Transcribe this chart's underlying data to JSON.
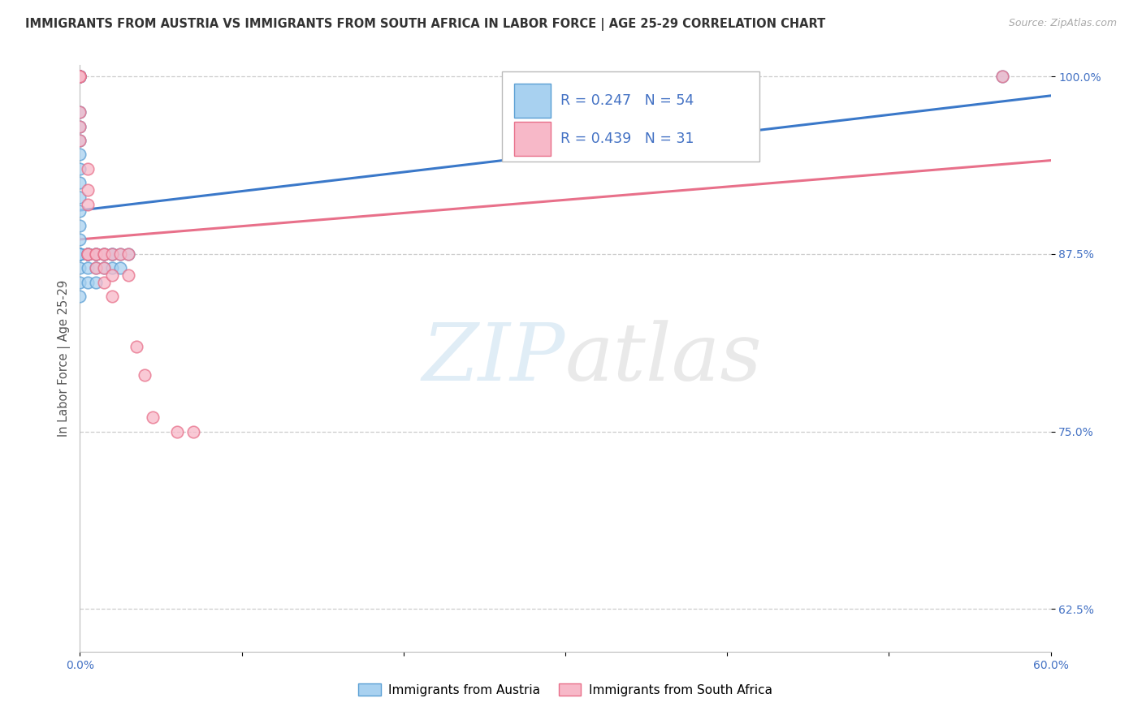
{
  "title": "IMMIGRANTS FROM AUSTRIA VS IMMIGRANTS FROM SOUTH AFRICA IN LABOR FORCE | AGE 25-29 CORRELATION CHART",
  "source": "Source: ZipAtlas.com",
  "ylabel": "In Labor Force | Age 25-29",
  "xlim": [
    0.0,
    0.6
  ],
  "ylim": [
    0.595,
    1.008
  ],
  "ytick_positions": [
    1.0,
    0.875,
    0.75,
    0.625
  ],
  "ytick_labels": [
    "100.0%",
    "87.5%",
    "75.0%",
    "62.5%"
  ],
  "grid_color": "#cccccc",
  "background_color": "#ffffff",
  "watermark_zip": "ZIP",
  "watermark_atlas": "atlas",
  "legend_R_austria": "0.247",
  "legend_N_austria": "54",
  "legend_R_sa": "0.439",
  "legend_N_sa": "31",
  "austria_color": "#a8d1f0",
  "austria_edge_color": "#5b9fd4",
  "sa_color": "#f7b8c8",
  "sa_edge_color": "#e8708a",
  "austria_line_color": "#3a78c9",
  "sa_line_color": "#e8708a",
  "austria_x": [
    0.0,
    0.0,
    0.0,
    0.0,
    0.0,
    0.0,
    0.0,
    0.0,
    0.0,
    0.0,
    0.0,
    0.0,
    0.0,
    0.0,
    0.0,
    0.0,
    0.0,
    0.0,
    0.0,
    0.0,
    0.0,
    0.0,
    0.0,
    0.0,
    0.0,
    0.0,
    0.0,
    0.0,
    0.0,
    0.0,
    0.0,
    0.0,
    0.005,
    0.005,
    0.005,
    0.005,
    0.005,
    0.005,
    0.005,
    0.01,
    0.01,
    0.01,
    0.01,
    0.01,
    0.015,
    0.015,
    0.015,
    0.02,
    0.02,
    0.02,
    0.025,
    0.025,
    0.03,
    0.57
  ],
  "austria_y": [
    1.0,
    1.0,
    1.0,
    1.0,
    1.0,
    1.0,
    1.0,
    1.0,
    1.0,
    1.0,
    0.975,
    0.965,
    0.955,
    0.945,
    0.935,
    0.925,
    0.915,
    0.905,
    0.895,
    0.885,
    0.875,
    0.875,
    0.875,
    0.875,
    0.875,
    0.875,
    0.875,
    0.875,
    0.875,
    0.865,
    0.855,
    0.845,
    0.875,
    0.875,
    0.875,
    0.875,
    0.875,
    0.865,
    0.855,
    0.875,
    0.875,
    0.875,
    0.865,
    0.855,
    0.875,
    0.875,
    0.865,
    0.875,
    0.875,
    0.865,
    0.875,
    0.865,
    0.875,
    1.0
  ],
  "sa_x": [
    0.0,
    0.0,
    0.0,
    0.0,
    0.0,
    0.0,
    0.0,
    0.005,
    0.005,
    0.005,
    0.005,
    0.005,
    0.01,
    0.01,
    0.01,
    0.015,
    0.015,
    0.015,
    0.015,
    0.02,
    0.02,
    0.02,
    0.025,
    0.03,
    0.03,
    0.035,
    0.04,
    0.045,
    0.06,
    0.07,
    0.57
  ],
  "sa_y": [
    1.0,
    1.0,
    1.0,
    1.0,
    0.975,
    0.965,
    0.955,
    0.935,
    0.92,
    0.91,
    0.875,
    0.875,
    0.875,
    0.875,
    0.865,
    0.875,
    0.875,
    0.865,
    0.855,
    0.875,
    0.86,
    0.845,
    0.875,
    0.875,
    0.86,
    0.81,
    0.79,
    0.76,
    0.75,
    0.75,
    1.0
  ]
}
